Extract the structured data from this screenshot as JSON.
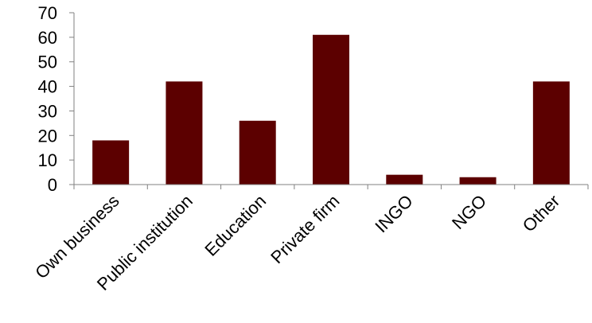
{
  "colors": {
    "bar": "#5c0000",
    "axis": "#808080"
  },
  "chart_data": {
    "type": "bar",
    "title": "",
    "xlabel": "",
    "ylabel": "",
    "categories": [
      "Own business",
      "Public institution",
      "Education",
      "Private firm",
      "INGO",
      "NGO",
      "Other"
    ],
    "values": [
      18,
      42,
      26,
      61,
      4,
      3,
      42
    ],
    "ylim": [
      0,
      70
    ],
    "yticks": [
      0,
      10,
      20,
      30,
      40,
      50,
      60,
      70
    ],
    "grid": false,
    "legend": "none"
  }
}
